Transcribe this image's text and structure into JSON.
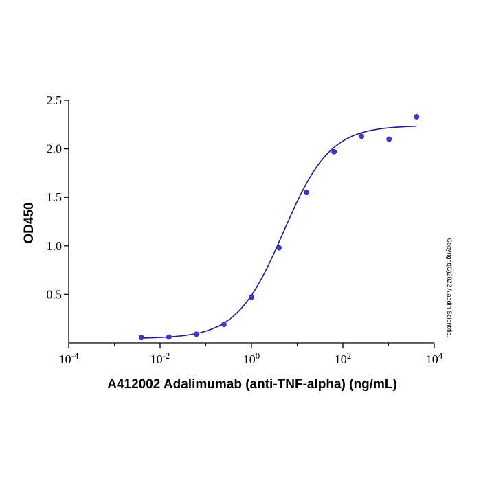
{
  "chart_data": {
    "type": "scatter",
    "title": "",
    "xlabel": "A412002 Adalimumab (anti-TNF-alpha) (ng/mL)",
    "ylabel": "OD450",
    "x_scale": "log10",
    "xlim": [
      0.0001,
      10000
    ],
    "ylim": [
      0,
      2.5
    ],
    "x_ticks": [
      0.0001,
      0.01,
      1,
      100,
      10000
    ],
    "x_tick_labels": [
      {
        "base": "10",
        "exp": "-4"
      },
      {
        "base": "10",
        "exp": "-2"
      },
      {
        "base": "10",
        "exp": "0"
      },
      {
        "base": "10",
        "exp": "2"
      },
      {
        "base": "10",
        "exp": "4"
      }
    ],
    "y_ticks": [
      0.5,
      1.0,
      1.5,
      2.0,
      2.5
    ],
    "y_tick_labels": [
      "0.5",
      "1.0",
      "1.5",
      "2.0",
      "2.5"
    ],
    "grid": false,
    "series": [
      {
        "points": [
          {
            "x": 0.0039,
            "y": 0.055
          },
          {
            "x": 0.0156,
            "y": 0.06
          },
          {
            "x": 0.0625,
            "y": 0.09
          },
          {
            "x": 0.25,
            "y": 0.19
          },
          {
            "x": 1.0,
            "y": 0.47
          },
          {
            "x": 4.0,
            "y": 0.98
          },
          {
            "x": 16.0,
            "y": 1.55
          },
          {
            "x": 64.0,
            "y": 1.97
          },
          {
            "x": 256.0,
            "y": 2.13
          },
          {
            "x": 1024.0,
            "y": 2.1
          },
          {
            "x": 4096.0,
            "y": 2.33
          }
        ],
        "color": "#3a3ad6"
      }
    ],
    "fit_curve": {
      "model": "4PL",
      "bottom": 0.045,
      "top": 2.24,
      "ec50": 5.0,
      "hill": 0.85,
      "color": "#1a1a8c"
    },
    "annotation": "Copyright(C)2022 Aladdin Scientific."
  }
}
